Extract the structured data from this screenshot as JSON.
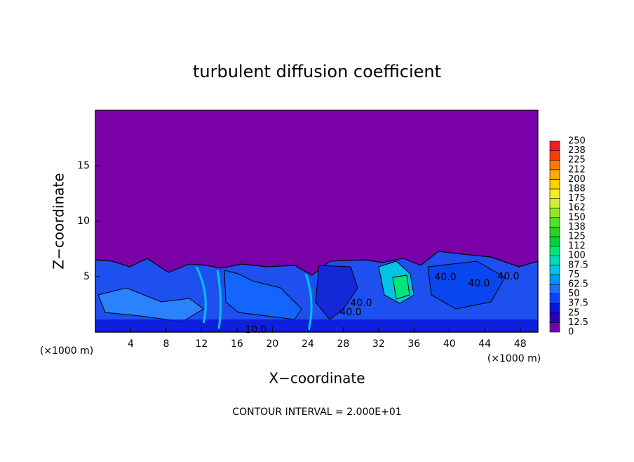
{
  "chart_data": {
    "type": "contour",
    "title": "turbulent diffusion coefficient",
    "xlabel": "X−coordinate",
    "ylabel": "Z−coordinate",
    "x_unit_left": "(×1000 m)",
    "x_unit_right": "(×1000 m)",
    "footer": "CONTOUR INTERVAL = 2.000E+01",
    "contour_labels": [
      "40.0",
      "40.0",
      "40.0",
      "40.0",
      "40.0",
      "10.0"
    ],
    "xlim": [
      0,
      50
    ],
    "xticks": [
      4,
      8,
      12,
      16,
      20,
      24,
      28,
      32,
      36,
      40,
      44,
      48
    ],
    "ylim": [
      0,
      20
    ],
    "yticks": [
      5,
      10,
      15
    ],
    "colorbar": {
      "levels": [
        0,
        12.5,
        25,
        37.5,
        50,
        62.5,
        75,
        87.5,
        100,
        112,
        125,
        138,
        150,
        162,
        175,
        188,
        200,
        212,
        225,
        238,
        250
      ],
      "colors": [
        "#7a00a8",
        "#2a00b8",
        "#0a14d8",
        "#0a46f0",
        "#1e6eff",
        "#0096ff",
        "#00c3e6",
        "#00dcb4",
        "#00e678",
        "#00d23c",
        "#28d228",
        "#50e628",
        "#96e628",
        "#d2f032",
        "#f0f01e",
        "#ffd200",
        "#ffaa00",
        "#ff7800",
        "#ff3c00",
        "#f01e28"
      ]
    }
  }
}
